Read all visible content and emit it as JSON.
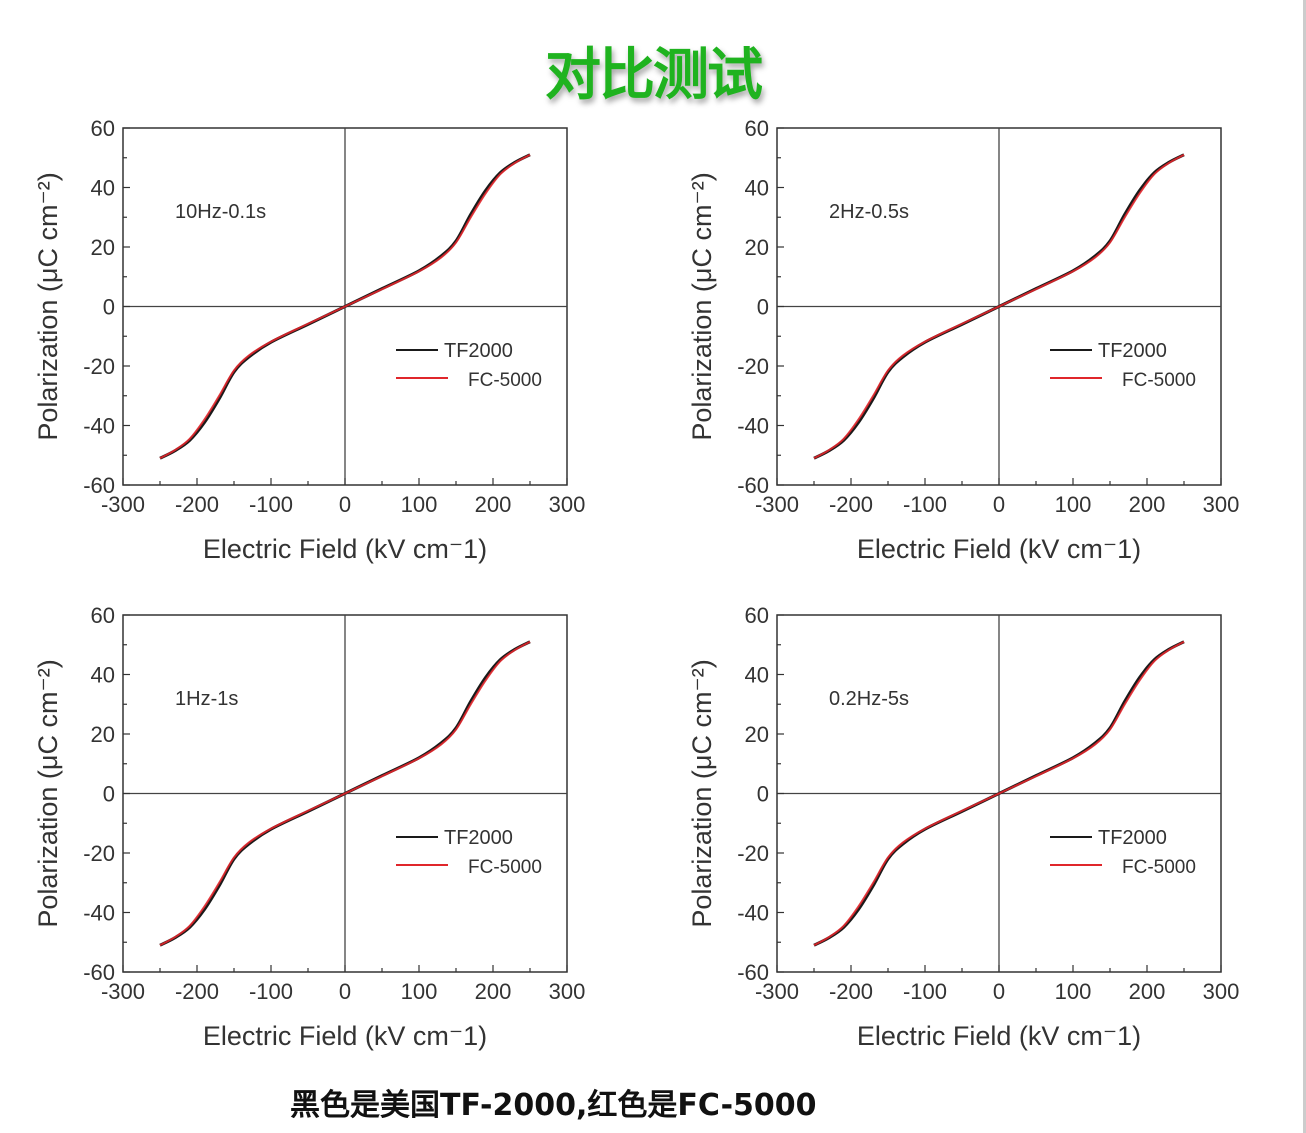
{
  "title": "对比测试",
  "caption": "黑色是美国TF-2000,红色是FC-5000",
  "colors": {
    "title": "#1fb31f",
    "TF2000": "#1a1a1a",
    "FC-5000": "#e0262b"
  },
  "chart_data": [
    {
      "type": "line",
      "annotation": "10Hz-0.1s",
      "xlabel": "Electric Field (kV cm⁻1)",
      "ylabel": "Polarization (μC cm⁻²)",
      "xlim": [
        -300,
        300
      ],
      "ylim": [
        -60,
        60
      ],
      "xticks": [
        -300,
        -200,
        -100,
        0,
        100,
        200,
        300
      ],
      "yticks": [
        -60,
        -40,
        -20,
        0,
        20,
        40,
        60
      ],
      "grid": false,
      "legend": "right-middle",
      "series": [
        {
          "name": "TF2000",
          "x": [
            -250,
            -230,
            -210,
            -190,
            -170,
            -150,
            -130,
            -100,
            -50,
            0,
            50,
            100,
            130,
            150,
            170,
            190,
            210,
            230,
            250
          ],
          "y": [
            -51,
            -48.5,
            -45,
            -39,
            -31,
            -22,
            -17,
            -12,
            -6,
            0,
            6,
            12,
            17,
            22,
            31,
            39,
            45,
            48.5,
            51
          ]
        },
        {
          "name": "FC-5000",
          "x": [
            -250,
            -230,
            -210,
            -190,
            -170,
            -150,
            -130,
            -100,
            -50,
            0,
            50,
            100,
            130,
            150,
            170,
            190,
            210,
            230,
            250
          ],
          "y": [
            -51,
            -48.3,
            -44.5,
            -38,
            -30,
            -21.5,
            -16.5,
            -11.8,
            -5.8,
            0,
            5.8,
            11.8,
            16.5,
            21.5,
            30,
            38,
            44.5,
            48.3,
            51
          ]
        }
      ]
    },
    {
      "type": "line",
      "annotation": "2Hz-0.5s",
      "xlabel": "Electric Field (kV cm⁻1)",
      "ylabel": "Polarization (μC cm⁻²)",
      "xlim": [
        -300,
        300
      ],
      "ylim": [
        -60,
        60
      ],
      "xticks": [
        -300,
        -200,
        -100,
        0,
        100,
        200,
        300
      ],
      "yticks": [
        -60,
        -40,
        -20,
        0,
        20,
        40,
        60
      ],
      "grid": false,
      "legend": "right-middle",
      "series": [
        {
          "name": "TF2000",
          "x": [
            -250,
            -230,
            -210,
            -190,
            -170,
            -150,
            -130,
            -100,
            -50,
            0,
            50,
            100,
            130,
            150,
            170,
            190,
            210,
            230,
            250
          ],
          "y": [
            -51,
            -48.5,
            -45,
            -39,
            -31,
            -22,
            -17,
            -12,
            -6,
            0,
            6,
            12,
            17,
            22,
            31,
            39,
            45,
            48.5,
            51
          ]
        },
        {
          "name": "FC-5000",
          "x": [
            -250,
            -230,
            -210,
            -190,
            -170,
            -150,
            -130,
            -100,
            -50,
            0,
            50,
            100,
            130,
            150,
            170,
            190,
            210,
            230,
            250
          ],
          "y": [
            -51,
            -48.3,
            -44.5,
            -38,
            -30,
            -21.5,
            -16.5,
            -11.8,
            -5.8,
            0,
            5.8,
            11.8,
            16.5,
            21.5,
            30,
            38,
            44.5,
            48.3,
            51
          ]
        }
      ]
    },
    {
      "type": "line",
      "annotation": "1Hz-1s",
      "xlabel": "Electric Field (kV cm⁻1)",
      "ylabel": "Polarization (μC cm⁻²)",
      "xlim": [
        -300,
        300
      ],
      "ylim": [
        -60,
        60
      ],
      "xticks": [
        -300,
        -200,
        -100,
        0,
        100,
        200,
        300
      ],
      "yticks": [
        -60,
        -40,
        -20,
        0,
        20,
        40,
        60
      ],
      "grid": false,
      "legend": "right-middle",
      "series": [
        {
          "name": "TF2000",
          "x": [
            -250,
            -230,
            -210,
            -190,
            -170,
            -150,
            -130,
            -100,
            -50,
            0,
            50,
            100,
            130,
            150,
            170,
            190,
            210,
            230,
            250
          ],
          "y": [
            -51,
            -48.5,
            -45,
            -39,
            -31,
            -22,
            -17,
            -12,
            -6,
            0,
            6,
            12,
            17,
            22,
            31,
            39,
            45,
            48.5,
            51
          ]
        },
        {
          "name": "FC-5000",
          "x": [
            -250,
            -230,
            -210,
            -190,
            -170,
            -150,
            -130,
            -100,
            -50,
            0,
            50,
            100,
            130,
            150,
            170,
            190,
            210,
            230,
            250
          ],
          "y": [
            -51,
            -48.3,
            -44.5,
            -38,
            -30,
            -21.5,
            -16.5,
            -11.8,
            -5.8,
            0,
            5.8,
            11.8,
            16.5,
            21.5,
            30,
            38,
            44.5,
            48.3,
            51
          ]
        }
      ]
    },
    {
      "type": "line",
      "annotation": "0.2Hz-5s",
      "xlabel": "Electric Field (kV cm⁻1)",
      "ylabel": "Polarization (μC cm⁻²)",
      "xlim": [
        -300,
        300
      ],
      "ylim": [
        -60,
        60
      ],
      "xticks": [
        -300,
        -200,
        -100,
        0,
        100,
        200,
        300
      ],
      "yticks": [
        -60,
        -40,
        -20,
        0,
        20,
        40,
        60
      ],
      "grid": false,
      "legend": "right-middle",
      "series": [
        {
          "name": "TF2000",
          "x": [
            -250,
            -230,
            -210,
            -190,
            -170,
            -150,
            -130,
            -100,
            -50,
            0,
            50,
            100,
            130,
            150,
            170,
            190,
            210,
            230,
            250
          ],
          "y": [
            -51,
            -48.5,
            -45,
            -39,
            -31,
            -22,
            -17,
            -12,
            -6,
            0,
            6,
            12,
            17,
            22,
            31,
            39,
            45,
            48.5,
            51
          ]
        },
        {
          "name": "FC-5000",
          "x": [
            -250,
            -230,
            -210,
            -190,
            -170,
            -150,
            -130,
            -100,
            -50,
            0,
            50,
            100,
            130,
            150,
            170,
            190,
            210,
            230,
            250
          ],
          "y": [
            -51,
            -48.3,
            -44.5,
            -38,
            -30,
            -21.5,
            -16.5,
            -11.8,
            -5.8,
            0,
            5.8,
            11.8,
            16.5,
            21.5,
            30,
            38,
            44.5,
            48.3,
            51
          ]
        }
      ]
    }
  ]
}
